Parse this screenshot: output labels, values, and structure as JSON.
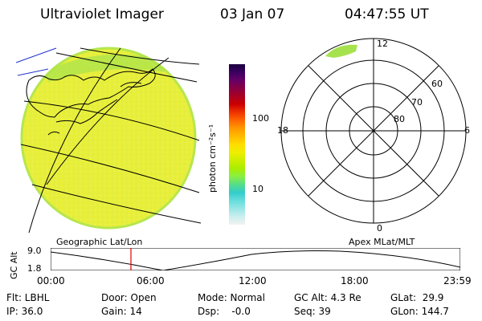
{
  "header": {
    "title": "Ultraviolet Imager",
    "date": "03 Jan 07",
    "time": "04:47:55 UT"
  },
  "colorbar": {
    "unit_label": "photon cm⁻²s⁻¹",
    "ticks": [
      "100",
      "10"
    ],
    "colors": [
      "#1a0040",
      "#3a0060",
      "#660066",
      "#880044",
      "#aa0022",
      "#cc0000",
      "#ee3300",
      "#ff6600",
      "#ff9900",
      "#ffbb00",
      "#ffdd00",
      "#eeee00",
      "#ccee00",
      "#aaee00",
      "#88ee44",
      "#55dd88",
      "#33cccc",
      "#66dddd",
      "#99e6e6",
      "#cceeee",
      "#f2f2f2"
    ]
  },
  "polar": {
    "labels": {
      "top": "12",
      "bottom": "0",
      "left": "18",
      "right": "6",
      "r60": "60",
      "r70": "70",
      "r80": "80"
    }
  },
  "plot": {
    "left_title": "Geographic Lat/Lon",
    "right_title": "Apex MLat/MLT",
    "ylabel": "GC Alt",
    "y_ticks": [
      "9.0",
      "1.8"
    ],
    "x_ticks": [
      "00:00",
      "06:00",
      "12:00",
      "18:00",
      "23:59"
    ]
  },
  "info": {
    "flt": "Flt: LBHL",
    "ip": "IP: 36.0",
    "door": "Door: Open",
    "gain": "Gain: 14",
    "mode": "Mode: Normal",
    "dsp": "Dsp:    -0.0",
    "gcalt": "GC Alt: 4.3 Re",
    "seq": "Seq: 39",
    "glat": "GLat:  29.9",
    "glon": "GLon: 144.7"
  },
  "colors": {
    "disk": "#e6ee3c",
    "disk_edge": "#a8e24a",
    "marker": "#dd0000",
    "coast": "#000000",
    "blue": "#2233cc"
  }
}
